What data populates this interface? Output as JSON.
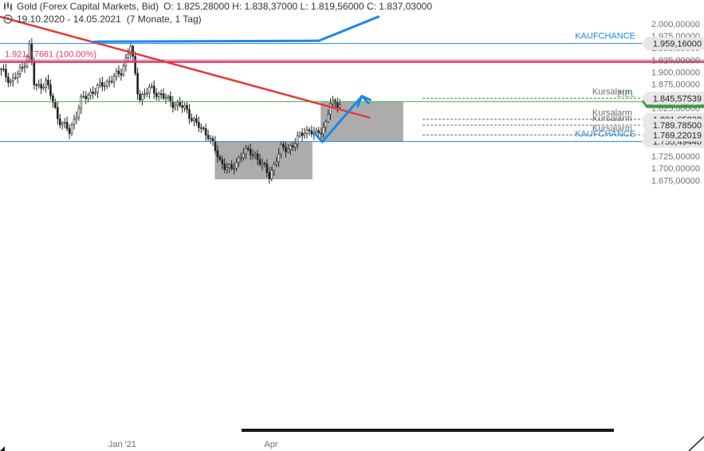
{
  "header": {
    "instrument": "Gold (Forex Capital Markets, Bid)",
    "ohlc": "O: 1.825,28000  H: 1.838,37000  L: 1.819,56000  C: 1.837,03000",
    "range": "19.10.2020 - 14.05.2021",
    "period": "(7 Monate, 1 Tag)"
  },
  "chart_data": {
    "type": "candlestick",
    "title": "Gold (Forex Capital Markets, Bid)",
    "x_range": [
      "19.10.2020",
      "14.05.2021"
    ],
    "ylim": [
      1675,
      2020
    ],
    "y_ticks": [
      {
        "value": 1675,
        "label": "1.675,00000"
      },
      {
        "value": 1700,
        "label": "1.700,00000"
      },
      {
        "value": 1725,
        "label": "1.725,00000"
      },
      {
        "value": 1750,
        "label": "1.750,00000"
      },
      {
        "value": 1775,
        "label": "1.775,00000"
      },
      {
        "value": 1800,
        "label": "1.800,00000"
      },
      {
        "value": 1825,
        "label": "1.825,00000"
      },
      {
        "value": 1850,
        "label": "1.850,00000"
      },
      {
        "value": 1875,
        "label": "1.875,00000"
      },
      {
        "value": 1900,
        "label": "1.900,00000"
      },
      {
        "value": 1925,
        "label": "1.925,00000"
      },
      {
        "value": 1950,
        "label": "1.950,00000"
      },
      {
        "value": 1975,
        "label": "1.975,00000"
      },
      {
        "value": 2000,
        "label": "2.000,00000"
      }
    ],
    "x_ticks": [
      {
        "date": "2021-01-01",
        "label": "Jan '21"
      },
      {
        "date": "2021-04-01",
        "label": "Apr"
      }
    ],
    "close_path": [
      {
        "date": "2020-10-19",
        "close": 1905
      },
      {
        "date": "2020-10-26",
        "close": 1880
      },
      {
        "date": "2020-11-02",
        "close": 1910
      },
      {
        "date": "2020-11-06",
        "close": 1955
      },
      {
        "date": "2020-11-09",
        "close": 1865
      },
      {
        "date": "2020-11-16",
        "close": 1880
      },
      {
        "date": "2020-11-23",
        "close": 1805
      },
      {
        "date": "2020-11-30",
        "close": 1775
      },
      {
        "date": "2020-12-07",
        "close": 1840
      },
      {
        "date": "2020-12-14",
        "close": 1860
      },
      {
        "date": "2020-12-21",
        "close": 1875
      },
      {
        "date": "2020-12-31",
        "close": 1898
      },
      {
        "date": "2021-01-06",
        "close": 1955
      },
      {
        "date": "2021-01-11",
        "close": 1845
      },
      {
        "date": "2021-01-18",
        "close": 1865
      },
      {
        "date": "2021-01-25",
        "close": 1850
      },
      {
        "date": "2021-02-01",
        "close": 1835
      },
      {
        "date": "2021-02-08",
        "close": 1825
      },
      {
        "date": "2021-02-15",
        "close": 1790
      },
      {
        "date": "2021-02-22",
        "close": 1770
      },
      {
        "date": "2021-03-01",
        "close": 1715
      },
      {
        "date": "2021-03-08",
        "close": 1695
      },
      {
        "date": "2021-03-15",
        "close": 1735
      },
      {
        "date": "2021-03-22",
        "close": 1730
      },
      {
        "date": "2021-03-31",
        "close": 1685
      },
      {
        "date": "2021-04-07",
        "close": 1740
      },
      {
        "date": "2021-04-14",
        "close": 1745
      },
      {
        "date": "2021-04-21",
        "close": 1780
      },
      {
        "date": "2021-04-28",
        "close": 1770
      },
      {
        "date": "2021-05-04",
        "close": 1790
      },
      {
        "date": "2021-05-07",
        "close": 1835
      },
      {
        "date": "2021-05-14",
        "close": 1837
      }
    ],
    "horizontal_lines": [
      {
        "name": "Kaufchance oben",
        "value": 1959.16,
        "color": "#1e88e5",
        "label": "KAUFCHANCE",
        "tag": "1.959,16000"
      },
      {
        "name": "Fib 100%",
        "value": 1921.17,
        "color": "#e53955",
        "label": "1.921,17661 (100.00%)",
        "tag": ""
      },
      {
        "name": "Ziel",
        "value": 1838.28,
        "color": "#4caf50",
        "label": "ZIEL",
        "tag": "1.838,27819"
      },
      {
        "name": "Kaufchance unten",
        "value": 1755.49,
        "color": "#1e88e5",
        "label": "KAUFCHANCE",
        "tag": "1.755,49440"
      }
    ],
    "alarm_lines": [
      {
        "value": 1845.58,
        "label": "Kursalarm",
        "tag": "1.845,57539"
      },
      {
        "value": 1801.66,
        "label": "Kursalarm",
        "tag": "1.801,65838"
      },
      {
        "value": 1789.79,
        "label": "Kursalarm",
        "tag": "1.789,78500"
      },
      {
        "value": 1769.22,
        "label": "Kursalarm",
        "tag": "1.769,22019"
      }
    ],
    "trend_line": {
      "from": {
        "date": "2020-10-19",
        "value": 2015
      },
      "to": {
        "date": "2021-05-31",
        "value": 1805
      },
      "color": "#e53935"
    },
    "forecast_arrows": [
      {
        "from": {
          "date": "2020-12-15",
          "value": 1963
        },
        "to": {
          "date": "2021-04-30",
          "value": 1965
        }
      },
      {
        "from": {
          "date": "2021-04-30",
          "value": 1965
        },
        "to": {
          "date": "2021-06-05",
          "value": 2015
        }
      },
      {
        "from": {
          "date": "2021-04-27",
          "value": 1774
        },
        "to": {
          "date": "2021-05-02",
          "value": 1755
        }
      },
      {
        "from": {
          "date": "2021-05-02",
          "value": 1755
        },
        "to": {
          "date": "2021-05-26",
          "value": 1850
        }
      },
      {
        "from": {
          "date": "2021-05-26",
          "value": 1850
        },
        "to": {
          "date": "2021-05-31",
          "value": 1842
        }
      }
    ],
    "zones": [
      {
        "from": "2021-02-26",
        "to": "2021-04-26",
        "y0": 1677,
        "y1": 1755.49,
        "color": "#9e9e9e"
      },
      {
        "from": "2021-05-01",
        "to": "2021-06-20",
        "y0": 1755.49,
        "y1": 1838.28,
        "color": "#9e9e9e"
      }
    ]
  }
}
